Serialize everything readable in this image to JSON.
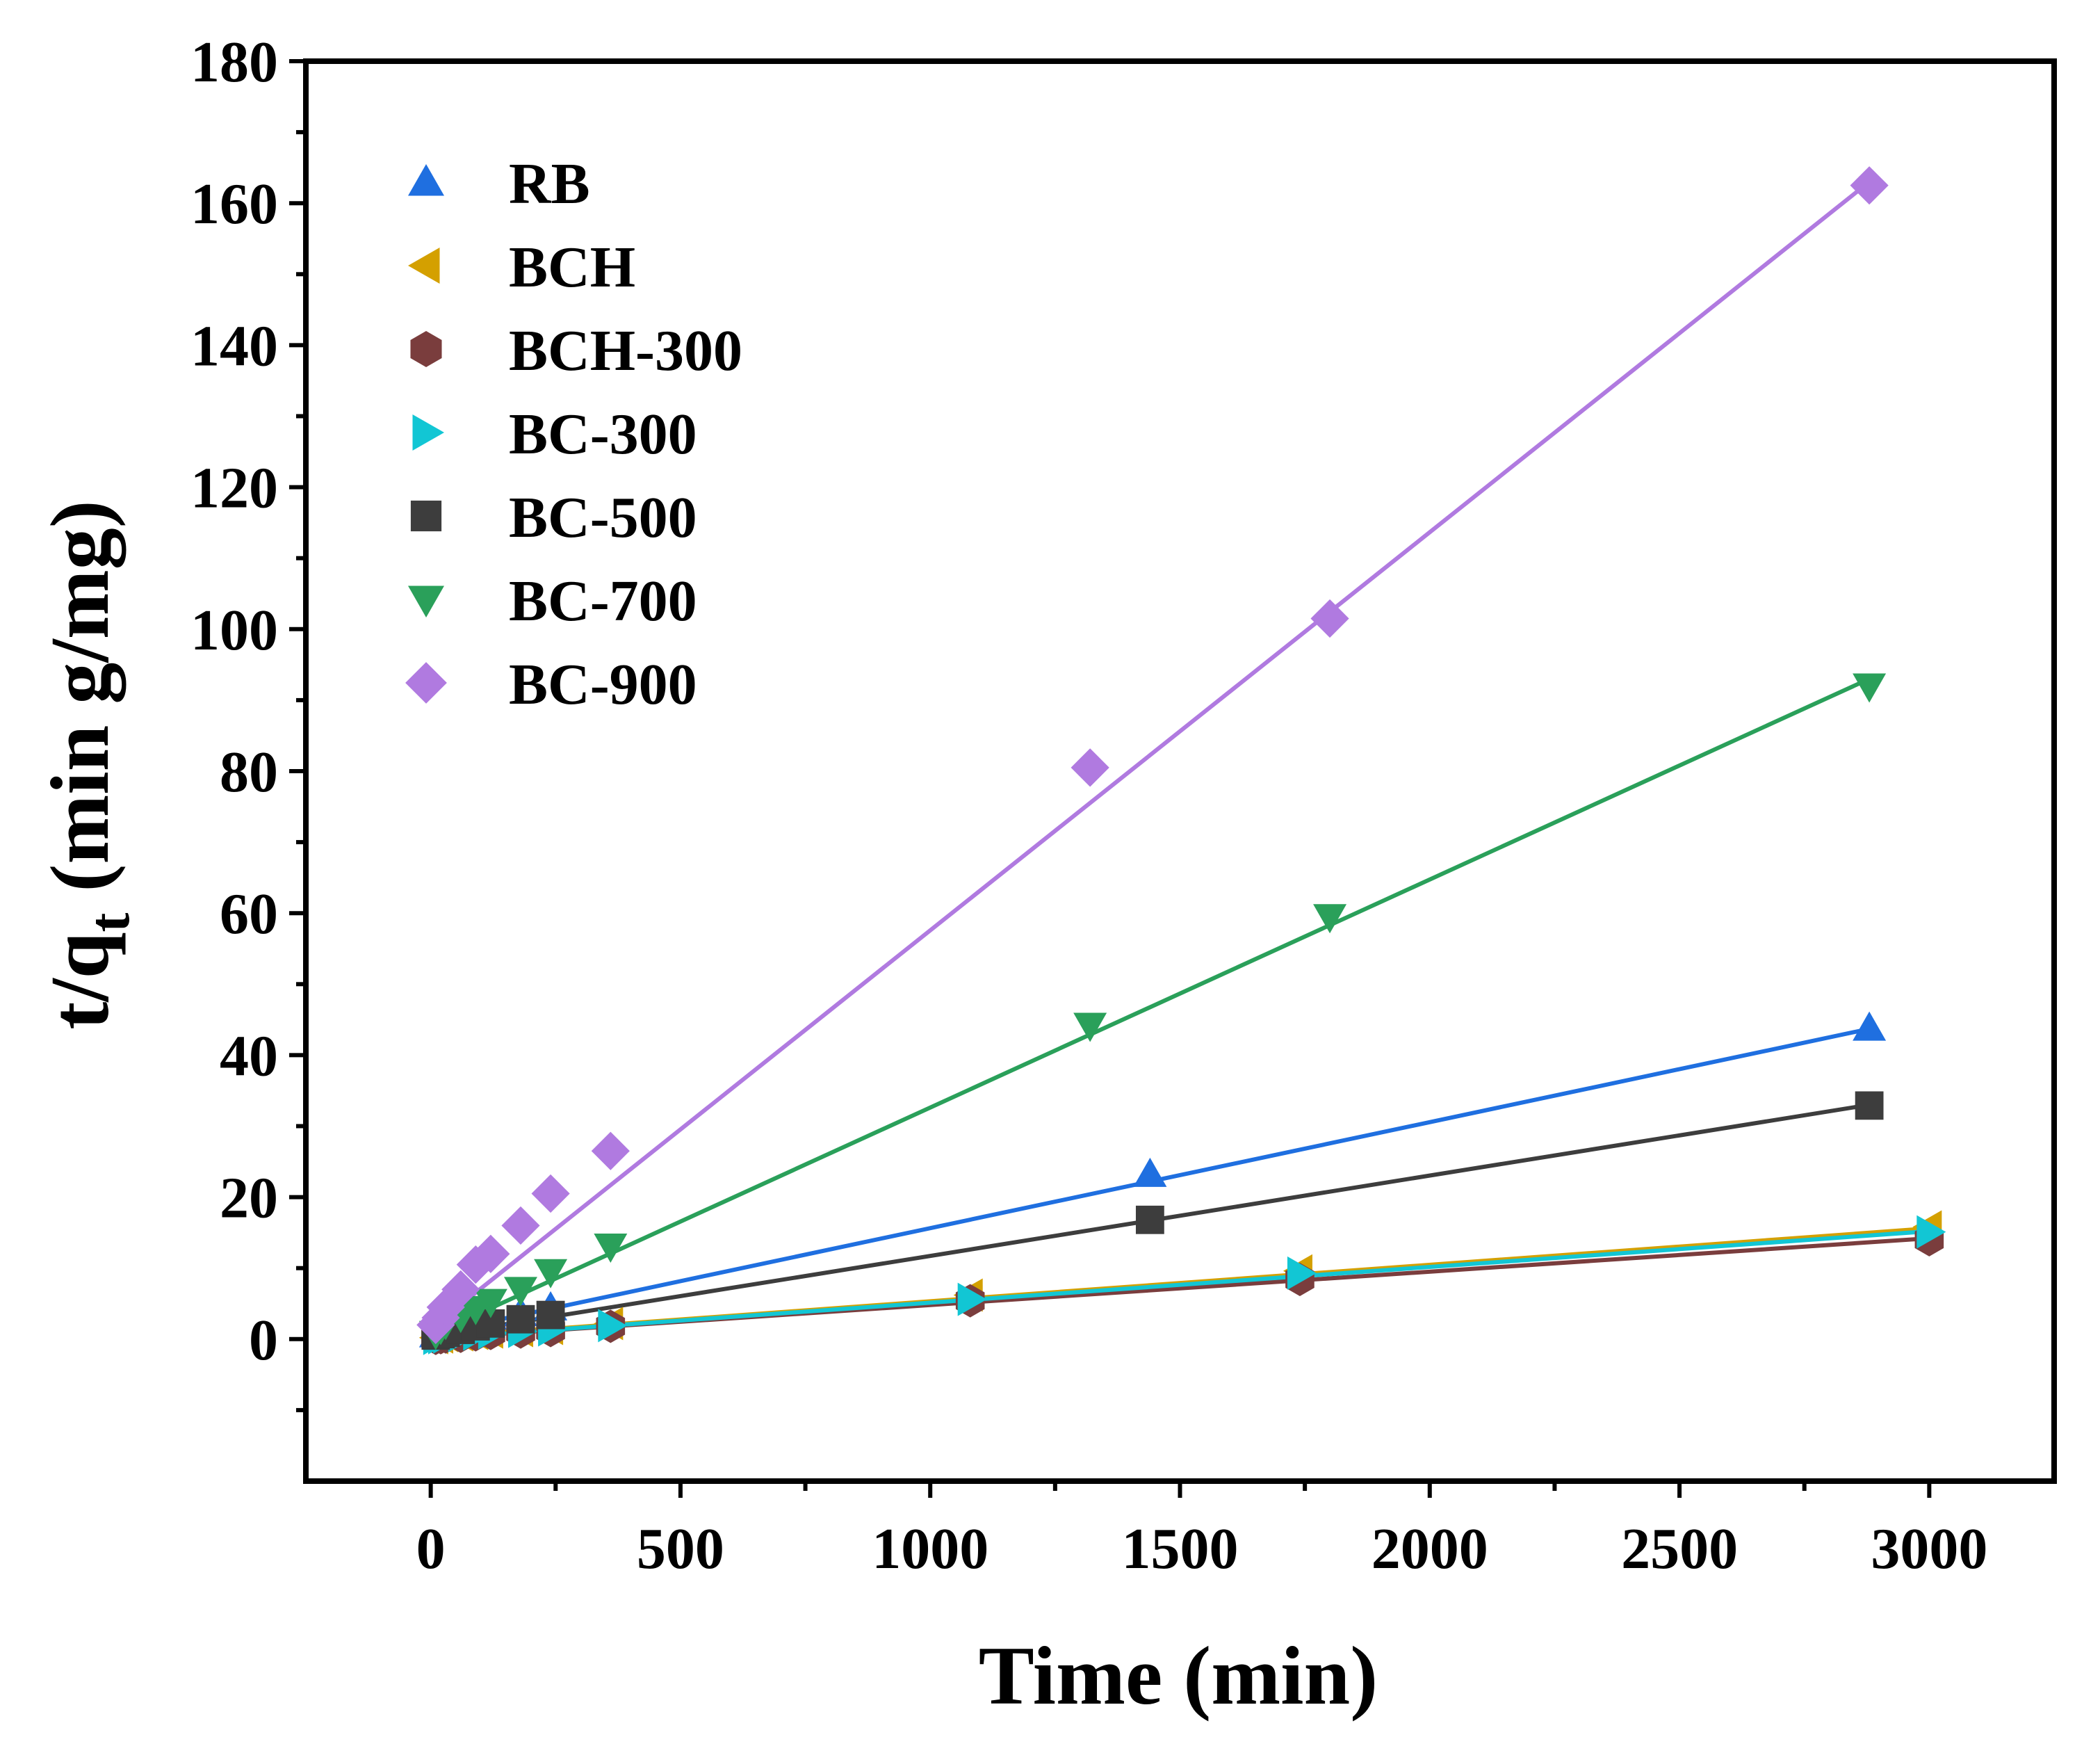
{
  "chart_data": {
    "type": "scatter",
    "xlabel": "Time (min)",
    "ylabel": {
      "main": "t/q",
      "sub": "t",
      "rest": " (min g/mg)"
    },
    "xlim": [
      -250,
      3250
    ],
    "ylim": [
      -20,
      180
    ],
    "xticks": [
      0,
      500,
      1000,
      1500,
      2000,
      2500,
      3000
    ],
    "yticks": [
      0,
      20,
      40,
      60,
      80,
      100,
      120,
      140,
      160,
      180
    ],
    "grid": false,
    "legend_position": "top-left",
    "fit_lines": true,
    "series": [
      {
        "name": "RB",
        "color": "#1f6fe0",
        "marker": "triangle-up",
        "x": [
          10,
          20,
          30,
          60,
          90,
          120,
          180,
          240,
          1440,
          2880
        ],
        "y": [
          0.6,
          0.9,
          1.2,
          1.8,
          2.5,
          3.0,
          3.6,
          4.4,
          23.2,
          43.8
        ],
        "fit": [
          [
            0,
            0.7
          ],
          [
            2880,
            43.7
          ]
        ]
      },
      {
        "name": "BCH",
        "color": "#d4a000",
        "marker": "triangle-left",
        "x": [
          10,
          20,
          30,
          60,
          90,
          120,
          180,
          240,
          360,
          1080,
          1740,
          3000
        ],
        "y": [
          0.2,
          0.3,
          0.5,
          0.6,
          0.8,
          1.0,
          1.2,
          1.5,
          2.2,
          6.2,
          9.6,
          15.8
        ],
        "fit": [
          [
            0,
            0.2
          ],
          [
            3000,
            15.6
          ]
        ]
      },
      {
        "name": "BCH-300",
        "color": "#7a3d3d",
        "marker": "hexagon",
        "x": [
          10,
          20,
          30,
          60,
          90,
          120,
          180,
          240,
          360,
          1080,
          1740,
          3000
        ],
        "y": [
          0.1,
          0.2,
          0.3,
          0.4,
          0.6,
          0.8,
          1.0,
          1.2,
          1.8,
          5.4,
          8.4,
          14.0
        ],
        "fit": [
          [
            0,
            0.1
          ],
          [
            3000,
            14.2
          ]
        ]
      },
      {
        "name": "BC-300",
        "color": "#12c6d4",
        "marker": "triangle-right",
        "x": [
          10,
          20,
          30,
          60,
          90,
          120,
          180,
          240,
          360,
          1080,
          1740,
          3000
        ],
        "y": [
          0.1,
          0.2,
          0.3,
          0.5,
          0.7,
          0.9,
          1.1,
          1.3,
          1.9,
          5.6,
          9.3,
          15.1
        ],
        "fit": [
          [
            0,
            0.1
          ],
          [
            3000,
            15.2
          ]
        ]
      },
      {
        "name": "BC-500",
        "color": "#3d3d3d",
        "marker": "square",
        "x": [
          10,
          20,
          30,
          60,
          90,
          120,
          180,
          240,
          1440,
          2880
        ],
        "y": [
          0.5,
          0.7,
          0.9,
          1.3,
          1.8,
          2.2,
          2.8,
          3.4,
          16.8,
          32.9
        ],
        "fit": [
          [
            0,
            0.4
          ],
          [
            2880,
            33.0
          ]
        ]
      },
      {
        "name": "BC-700",
        "color": "#2aa05a",
        "marker": "triangle-down",
        "x": [
          10,
          20,
          30,
          60,
          90,
          120,
          180,
          240,
          360,
          1320,
          1800,
          2880
        ],
        "y": [
          0.8,
          1.5,
          2.2,
          3.2,
          4.3,
          5.3,
          7.0,
          9.5,
          13.1,
          44.2,
          59.5,
          92.0
        ],
        "fit": [
          [
            0,
            0.5
          ],
          [
            2880,
            93.0
          ]
        ]
      },
      {
        "name": "BC-900",
        "color": "#b07ae0",
        "marker": "diamond",
        "x": [
          10,
          20,
          30,
          60,
          90,
          120,
          180,
          240,
          360,
          1320,
          1800,
          2880
        ],
        "y": [
          2.0,
          3.0,
          4.5,
          7.0,
          10.5,
          12.0,
          16.0,
          20.5,
          26.5,
          80.5,
          101.5,
          162.5
        ],
        "fit": [
          [
            0,
            1.5
          ],
          [
            2880,
            163.0
          ]
        ]
      }
    ]
  }
}
